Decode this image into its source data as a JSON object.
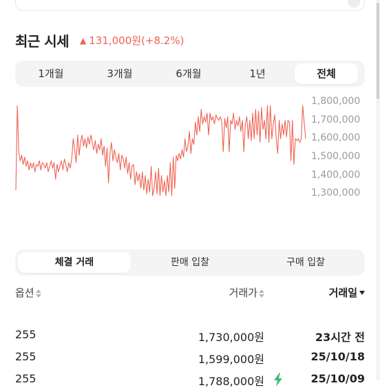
{
  "section": {
    "title": "최근 시세",
    "change_text": "131,000원(+8.2%)",
    "change_color": "#ef6253"
  },
  "period_tabs": [
    {
      "label": "1개월",
      "active": false
    },
    {
      "label": "3개월",
      "active": false
    },
    {
      "label": "6개월",
      "active": false
    },
    {
      "label": "1년",
      "active": false
    },
    {
      "label": "전체",
      "active": true
    }
  ],
  "chart_data": {
    "type": "line",
    "title": "",
    "xlabel": "",
    "ylabel": "",
    "ylim": [
      1230000,
      1830000
    ],
    "yticks": [
      "1,800,000",
      "1,700,000",
      "1,600,000",
      "1,500,000",
      "1,400,000",
      "1,300,000"
    ],
    "ytick_values": [
      1800000,
      1700000,
      1600000,
      1500000,
      1400000,
      1300000
    ],
    "grid": false,
    "line_color": "#ef6253",
    "series": [
      {
        "values": [
          1320000,
          1780000,
          1530000,
          1480000,
          1510000,
          1460000,
          1500000,
          1450000,
          1480000,
          1430000,
          1470000,
          1440000,
          1470000,
          1420000,
          1460000,
          1450000,
          1480000,
          1430000,
          1470000,
          1460000,
          1440000,
          1470000,
          1420000,
          1450000,
          1480000,
          1440000,
          1470000,
          1380000,
          1460000,
          1420000,
          1450000,
          1480000,
          1430000,
          1490000,
          1460000,
          1420000,
          1470000,
          1440000,
          1490000,
          1600000,
          1540000,
          1470000,
          1620000,
          1510000,
          1580000,
          1620000,
          1560000,
          1600000,
          1550000,
          1610000,
          1570000,
          1620000,
          1580000,
          1540000,
          1590000,
          1520000,
          1570000,
          1540000,
          1600000,
          1510000,
          1560000,
          1450000,
          1550000,
          1360000,
          1520000,
          1580000,
          1480000,
          1540000,
          1500000,
          1470000,
          1520000,
          1430000,
          1510000,
          1490000,
          1440000,
          1500000,
          1410000,
          1470000,
          1380000,
          1450000,
          1460000,
          1350000,
          1420000,
          1370000,
          1410000,
          1330000,
          1420000,
          1320000,
          1400000,
          1300000,
          1380000,
          1310000,
          1450000,
          1290000,
          1330000,
          1420000,
          1300000,
          1440000,
          1290000,
          1400000,
          1310000,
          1370000,
          1290000,
          1400000,
          1310000,
          1470000,
          1290000,
          1500000,
          1330000,
          1510000,
          1480000,
          1520000,
          1490000,
          1540000,
          1500000,
          1600000,
          1530000,
          1560000,
          1640000,
          1520000,
          1600000,
          1570000,
          1690000,
          1620000,
          1720000,
          1640000,
          1760000,
          1680000,
          1720000,
          1690000,
          1740000,
          1620000,
          1740000,
          1700000,
          1720000,
          1680000,
          1730000,
          1710000,
          1700000,
          1720000,
          1690000,
          1530000,
          1710000,
          1660000,
          1720000,
          1530000,
          1700000,
          1680000,
          1740000,
          1650000,
          1700000,
          1670000,
          1720000,
          1640000,
          1700000,
          1530000,
          1680000,
          1720000,
          1600000,
          1700000,
          1590000,
          1740000,
          1600000,
          1760000,
          1620000,
          1750000,
          1580000,
          1770000,
          1650000,
          1700000,
          1600000,
          1780000,
          1580000,
          1780000,
          1600000,
          1680000,
          1730000,
          1600000,
          1520000,
          1700000,
          1600000,
          1680000,
          1620000,
          1700000,
          1610000,
          1700000,
          1690000,
          1480000,
          1700000,
          1460000,
          1600000,
          1590000,
          1600000,
          1580000,
          1600000,
          1780000,
          1690000,
          1600000
        ]
      }
    ]
  },
  "trade_tabs": [
    {
      "label": "체결 거래",
      "active": true
    },
    {
      "label": "판매 입찰",
      "active": false
    },
    {
      "label": "구매 입찰",
      "active": false
    }
  ],
  "table": {
    "headers": {
      "option": "옵션",
      "price": "거래가",
      "date": "거래일"
    },
    "rows": [
      {
        "option": "255",
        "price": "1,730,000원",
        "date": "23시간 전",
        "bolt": false
      },
      {
        "option": "255",
        "price": "1,599,000원",
        "date": "25/10/18",
        "bolt": false
      },
      {
        "option": "255",
        "price": "1,788,000원",
        "date": "25/10/09",
        "bolt": true
      }
    ]
  },
  "icons": {
    "bolt": "lightning-icon",
    "bolt_color": "#41b979",
    "sort": "sort-arrows-icon"
  }
}
